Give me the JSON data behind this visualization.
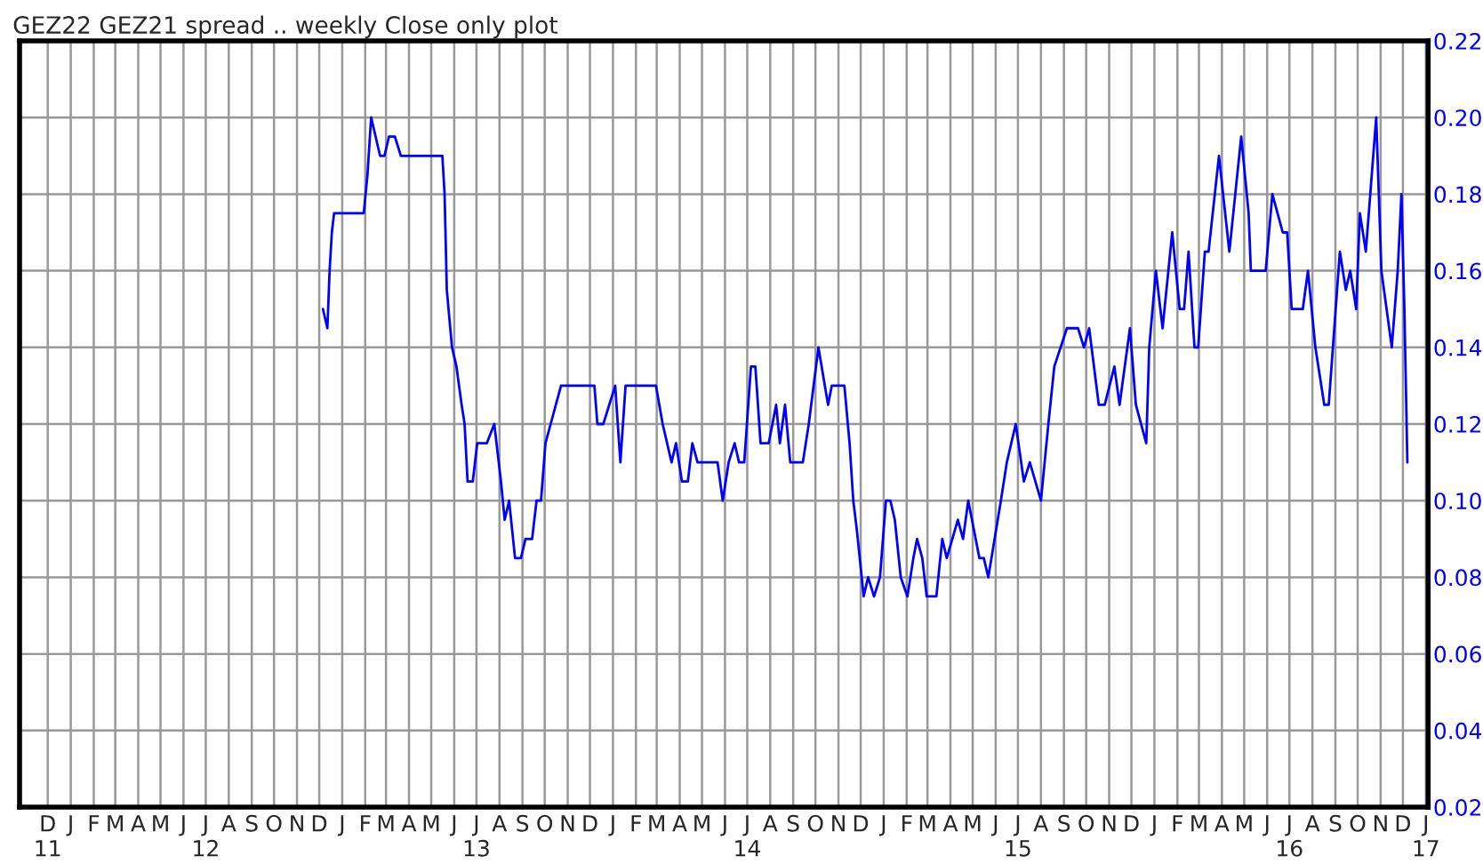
{
  "chart_data": {
    "type": "line",
    "title": "GEZ22 GEZ21 spread .. weekly Close only plot",
    "x": [
      "2012-12-06",
      "2012-12-12",
      "2012-12-15",
      "2012-12-18",
      "2012-12-21",
      "2013-01-30",
      "2013-02-04",
      "2013-02-09",
      "2013-02-21",
      "2013-02-27",
      "2013-03-05",
      "2013-03-13",
      "2013-03-21",
      "2013-05-16",
      "2013-05-19",
      "2013-05-22",
      "2013-05-29",
      "2013-06-04",
      "2013-06-11",
      "2013-06-15",
      "2013-06-19",
      "2013-06-26",
      "2013-07-02",
      "2013-07-15",
      "2013-07-25",
      "2013-08-03",
      "2013-08-08",
      "2013-08-14",
      "2013-08-22",
      "2013-08-30",
      "2013-09-05",
      "2013-09-14",
      "2013-09-20",
      "2013-09-26",
      "2013-10-02",
      "2013-10-09",
      "2013-10-23",
      "2013-12-07",
      "2013-12-11",
      "2013-12-19",
      "2014-01-04",
      "2014-01-11",
      "2014-01-18",
      "2014-02-28",
      "2014-03-09",
      "2014-03-21",
      "2014-03-27",
      "2014-04-04",
      "2014-04-12",
      "2014-04-18",
      "2014-04-25",
      "2014-05-22",
      "2014-05-29",
      "2014-06-06",
      "2014-06-14",
      "2014-06-20",
      "2014-06-27",
      "2014-07-06",
      "2014-07-12",
      "2014-07-19",
      "2014-07-30",
      "2014-08-09",
      "2014-08-14",
      "2014-08-21",
      "2014-08-28",
      "2014-09-14",
      "2014-09-22",
      "2014-10-05",
      "2014-10-18",
      "2014-10-23",
      "2014-11-09",
      "2014-11-16",
      "2014-11-21",
      "2014-11-26",
      "2014-12-05",
      "2014-12-11",
      "2014-12-19",
      "2014-12-27",
      "2015-01-04",
      "2015-01-10",
      "2015-01-16",
      "2015-01-24",
      "2015-02-02",
      "2015-02-10",
      "2015-02-15",
      "2015-02-22",
      "2015-02-28",
      "2015-03-13",
      "2015-03-21",
      "2015-03-27",
      "2015-04-11",
      "2015-04-18",
      "2015-04-25",
      "2015-05-05",
      "2015-05-10",
      "2015-05-16",
      "2015-05-22",
      "2015-06-08",
      "2015-06-16",
      "2015-06-28",
      "2015-07-09",
      "2015-07-17",
      "2015-08-01",
      "2015-08-11",
      "2015-08-19",
      "2015-09-05",
      "2015-09-20",
      "2015-09-28",
      "2015-10-05",
      "2015-10-18",
      "2015-10-26",
      "2015-11-08",
      "2015-11-15",
      "2015-11-29",
      "2015-12-07",
      "2015-12-21",
      "2015-12-25",
      "2016-01-03",
      "2016-01-12",
      "2016-01-25",
      "2016-02-04",
      "2016-02-10",
      "2016-02-16",
      "2016-02-24",
      "2016-02-29",
      "2016-03-09",
      "2016-03-14",
      "2016-03-28",
      "2016-04-11",
      "2016-04-19",
      "2016-04-27",
      "2016-05-07",
      "2016-05-10",
      "2016-05-30",
      "2016-06-08",
      "2016-06-22",
      "2016-06-28",
      "2016-07-04",
      "2016-07-19",
      "2016-07-26",
      "2016-08-05",
      "2016-08-17",
      "2016-08-23",
      "2016-09-07",
      "2016-09-15",
      "2016-09-21",
      "2016-09-29",
      "2016-10-04",
      "2016-10-12",
      "2016-10-18",
      "2016-10-26",
      "2016-11-02",
      "2016-11-16",
      "2016-11-24",
      "2016-11-29",
      "2016-12-03",
      "2016-12-07"
    ],
    "series": [
      {
        "color": "#0000ff",
        "values": [
          0.15,
          0.145,
          0.16,
          0.17,
          0.175,
          0.175,
          0.185,
          0.2,
          0.19,
          0.19,
          0.195,
          0.195,
          0.19,
          0.19,
          0.18,
          0.155,
          0.14,
          0.135,
          0.125,
          0.12,
          0.105,
          0.105,
          0.115,
          0.115,
          0.12,
          0.105,
          0.095,
          0.1,
          0.085,
          0.085,
          0.09,
          0.09,
          0.1,
          0.1,
          0.115,
          0.12,
          0.13,
          0.13,
          0.12,
          0.12,
          0.13,
          0.11,
          0.13,
          0.13,
          0.12,
          0.11,
          0.115,
          0.105,
          0.105,
          0.115,
          0.11,
          0.11,
          0.1,
          0.11,
          0.115,
          0.11,
          0.11,
          0.135,
          0.135,
          0.115,
          0.115,
          0.125,
          0.115,
          0.125,
          0.11,
          0.11,
          0.12,
          0.14,
          0.125,
          0.13,
          0.13,
          0.115,
          0.1,
          0.092,
          0.075,
          0.08,
          0.075,
          0.08,
          0.1,
          0.1,
          0.095,
          0.08,
          0.075,
          0.085,
          0.09,
          0.085,
          0.075,
          0.075,
          0.09,
          0.085,
          0.095,
          0.09,
          0.1,
          0.09,
          0.085,
          0.085,
          0.08,
          0.1,
          0.11,
          0.12,
          0.105,
          0.11,
          0.1,
          0.12,
          0.135,
          0.145,
          0.145,
          0.14,
          0.145,
          0.125,
          0.125,
          0.135,
          0.125,
          0.145,
          0.125,
          0.115,
          0.14,
          0.16,
          0.145,
          0.17,
          0.15,
          0.15,
          0.165,
          0.14,
          0.14,
          0.165,
          0.165,
          0.19,
          0.165,
          0.18,
          0.195,
          0.175,
          0.16,
          0.16,
          0.18,
          0.17,
          0.17,
          0.15,
          0.15,
          0.16,
          0.14,
          0.125,
          0.125,
          0.165,
          0.155,
          0.16,
          0.15,
          0.175,
          0.165,
          0.18,
          0.2,
          0.16,
          0.14,
          0.16,
          0.18,
          0.15,
          0.11
        ]
      }
    ],
    "xlim": [
      "2011-10-24",
      "2017-01-04"
    ],
    "xticks": [
      {
        "value": "2011-12-01",
        "label": "D\n11"
      },
      {
        "value": "2012-01-01",
        "label": "J"
      },
      {
        "value": "2012-02-01",
        "label": "F"
      },
      {
        "value": "2012-03-01",
        "label": "M"
      },
      {
        "value": "2012-04-01",
        "label": "A"
      },
      {
        "value": "2012-05-01",
        "label": "M"
      },
      {
        "value": "2012-06-01",
        "label": "J"
      },
      {
        "value": "2012-07-01",
        "label": "J\n12"
      },
      {
        "value": "2012-08-01",
        "label": "A"
      },
      {
        "value": "2012-09-01",
        "label": "S"
      },
      {
        "value": "2012-10-01",
        "label": "O"
      },
      {
        "value": "2012-11-01",
        "label": "N"
      },
      {
        "value": "2012-12-01",
        "label": "D"
      },
      {
        "value": "2013-01-01",
        "label": "J"
      },
      {
        "value": "2013-02-01",
        "label": "F"
      },
      {
        "value": "2013-03-01",
        "label": "M"
      },
      {
        "value": "2013-04-01",
        "label": "A"
      },
      {
        "value": "2013-05-01",
        "label": "M"
      },
      {
        "value": "2013-06-01",
        "label": "J"
      },
      {
        "value": "2013-07-01",
        "label": "J\n13"
      },
      {
        "value": "2013-08-01",
        "label": "A"
      },
      {
        "value": "2013-09-01",
        "label": "S"
      },
      {
        "value": "2013-10-01",
        "label": "O"
      },
      {
        "value": "2013-11-01",
        "label": "N"
      },
      {
        "value": "2013-12-01",
        "label": "D"
      },
      {
        "value": "2014-01-01",
        "label": "J"
      },
      {
        "value": "2014-02-01",
        "label": "F"
      },
      {
        "value": "2014-03-01",
        "label": "M"
      },
      {
        "value": "2014-04-01",
        "label": "A"
      },
      {
        "value": "2014-05-01",
        "label": "M"
      },
      {
        "value": "2014-06-01",
        "label": "J"
      },
      {
        "value": "2014-07-01",
        "label": "J\n14"
      },
      {
        "value": "2014-08-01",
        "label": "A"
      },
      {
        "value": "2014-09-01",
        "label": "S"
      },
      {
        "value": "2014-10-01",
        "label": "O"
      },
      {
        "value": "2014-11-01",
        "label": "N"
      },
      {
        "value": "2014-12-01",
        "label": "D"
      },
      {
        "value": "2015-01-01",
        "label": "J"
      },
      {
        "value": "2015-02-01",
        "label": "F"
      },
      {
        "value": "2015-03-01",
        "label": "M"
      },
      {
        "value": "2015-04-01",
        "label": "A"
      },
      {
        "value": "2015-05-01",
        "label": "M"
      },
      {
        "value": "2015-06-01",
        "label": "J"
      },
      {
        "value": "2015-07-01",
        "label": "J\n15"
      },
      {
        "value": "2015-08-01",
        "label": "A"
      },
      {
        "value": "2015-09-01",
        "label": "S"
      },
      {
        "value": "2015-10-01",
        "label": "O"
      },
      {
        "value": "2015-11-01",
        "label": "N"
      },
      {
        "value": "2015-12-01",
        "label": "D"
      },
      {
        "value": "2016-01-01",
        "label": "J"
      },
      {
        "value": "2016-02-01",
        "label": "F"
      },
      {
        "value": "2016-03-01",
        "label": "M"
      },
      {
        "value": "2016-04-01",
        "label": "A"
      },
      {
        "value": "2016-05-01",
        "label": "M"
      },
      {
        "value": "2016-06-01",
        "label": "J"
      },
      {
        "value": "2016-07-01",
        "label": "J\n16"
      },
      {
        "value": "2016-08-01",
        "label": "A"
      },
      {
        "value": "2016-09-01",
        "label": "S"
      },
      {
        "value": "2016-10-01",
        "label": "O"
      },
      {
        "value": "2016-11-01",
        "label": "N"
      },
      {
        "value": "2016-12-01",
        "label": "D"
      },
      {
        "value": "2017-01-01",
        "label": "J\n17"
      }
    ],
    "ylim": [
      0.02,
      0.22
    ],
    "yticks": [
      {
        "value": 0.02,
        "label": "0.02"
      },
      {
        "value": 0.04,
        "label": "0.04"
      },
      {
        "value": 0.06,
        "label": "0.06"
      },
      {
        "value": 0.08,
        "label": "0.08"
      },
      {
        "value": 0.1,
        "label": "0.10"
      },
      {
        "value": 0.12,
        "label": "0.12"
      },
      {
        "value": 0.14,
        "label": "0.14"
      },
      {
        "value": 0.16,
        "label": "0.16"
      },
      {
        "value": 0.18,
        "label": "0.18"
      },
      {
        "value": 0.2,
        "label": "0.20"
      },
      {
        "value": 0.22,
        "label": "0.22"
      }
    ],
    "grid": true,
    "line_style": "solid"
  }
}
